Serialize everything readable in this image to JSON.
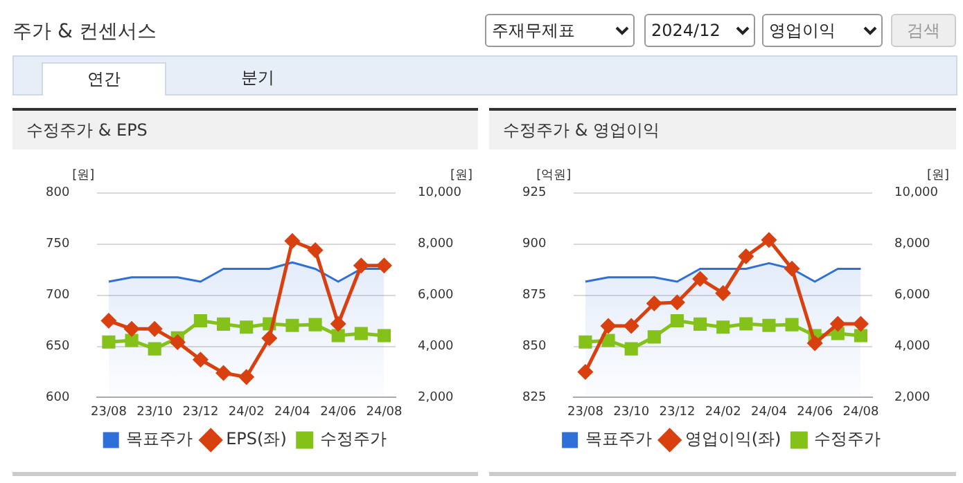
{
  "chart_data": [
    {
      "type": "other",
      "title": "주가 & 컨센서스",
      "annotations": [
        "주재무제표",
        "2024/12",
        "영업이익",
        "검색",
        "연간",
        "분기"
      ]
    },
    {
      "type": "line",
      "title": "수정주가 & EPS",
      "ylabel": "[원]",
      "y2label": "[원]",
      "categories": [
        "23/08",
        null,
        "23/10",
        null,
        "23/12",
        null,
        "24/02",
        null,
        "24/04",
        null,
        "24/06",
        null,
        "24/08"
      ],
      "series": [
        {
          "name": "목표주가",
          "type": "area",
          "axis": "y2",
          "color": "#2f6fd8",
          "marker": "none",
          "values": [
            6530,
            6700,
            6700,
            6700,
            6530,
            7030,
            7030,
            7030,
            7280,
            7030,
            6530,
            7030,
            7030
          ]
        },
        {
          "name": "EPS(좌)",
          "type": "line",
          "axis": "y",
          "color": "#d9400f",
          "marker": "diamond",
          "values": [
            675,
            667,
            667,
            654,
            637,
            624,
            620,
            658,
            753,
            744,
            672,
            729,
            729
          ]
        },
        {
          "name": "수정주가",
          "type": "line",
          "axis": "y2",
          "color": "#84c21a",
          "marker": "square",
          "values": [
            4170,
            4230,
            3900,
            4330,
            5000,
            4870,
            4750,
            4880,
            4820,
            4850,
            4420,
            4500,
            4420
          ]
        }
      ],
      "ylim": [
        600,
        800
      ],
      "yticks": [
        600,
        650,
        700,
        750,
        800
      ],
      "y2lim": [
        2000,
        10000
      ],
      "y2ticks": [
        {
          "value": 2000,
          "label": "2,000"
        },
        {
          "value": 4000,
          "label": "4,000"
        },
        {
          "value": 6000,
          "label": "6,000"
        },
        {
          "value": 8000,
          "label": "8,000"
        },
        {
          "value": 10000,
          "label": "10,000"
        }
      ],
      "grid": "y",
      "legend": "bottom"
    },
    {
      "type": "line",
      "title": "수정주가 & 영업이익",
      "ylabel": "[억원]",
      "y2label": "[원]",
      "categories": [
        "23/08",
        null,
        "23/10",
        null,
        "23/12",
        null,
        "24/02",
        null,
        "24/04",
        null,
        "24/06",
        null,
        "24/08"
      ],
      "series": [
        {
          "name": "목표주가",
          "type": "area",
          "axis": "y2",
          "color": "#2f6fd8",
          "marker": "none",
          "values": [
            6530,
            6700,
            6700,
            6700,
            6530,
            7030,
            7030,
            7030,
            7250,
            7030,
            6530,
            7030,
            7030
          ]
        },
        {
          "name": "영업이익(좌)",
          "type": "line",
          "axis": "y",
          "color": "#d9400f",
          "marker": "diamond",
          "values": [
            837.5,
            860,
            860,
            871,
            871.5,
            883,
            876,
            894,
            902,
            888,
            851.5,
            861,
            861
          ]
        },
        {
          "name": "수정주가",
          "type": "line",
          "axis": "y2",
          "color": "#84c21a",
          "marker": "square",
          "values": [
            4170,
            4230,
            3900,
            4370,
            5000,
            4870,
            4750,
            4880,
            4820,
            4850,
            4420,
            4500,
            4420
          ]
        }
      ],
      "ylim": [
        825,
        925
      ],
      "yticks": [
        825,
        850,
        875,
        900,
        925
      ],
      "y2lim": [
        2000,
        10000
      ],
      "y2ticks": [
        {
          "value": 2000,
          "label": "2,000"
        },
        {
          "value": 4000,
          "label": "4,000"
        },
        {
          "value": 6000,
          "label": "6,000"
        },
        {
          "value": 8000,
          "label": "8,000"
        },
        {
          "value": 10000,
          "label": "10,000"
        }
      ],
      "grid": "y",
      "legend": "bottom"
    }
  ]
}
